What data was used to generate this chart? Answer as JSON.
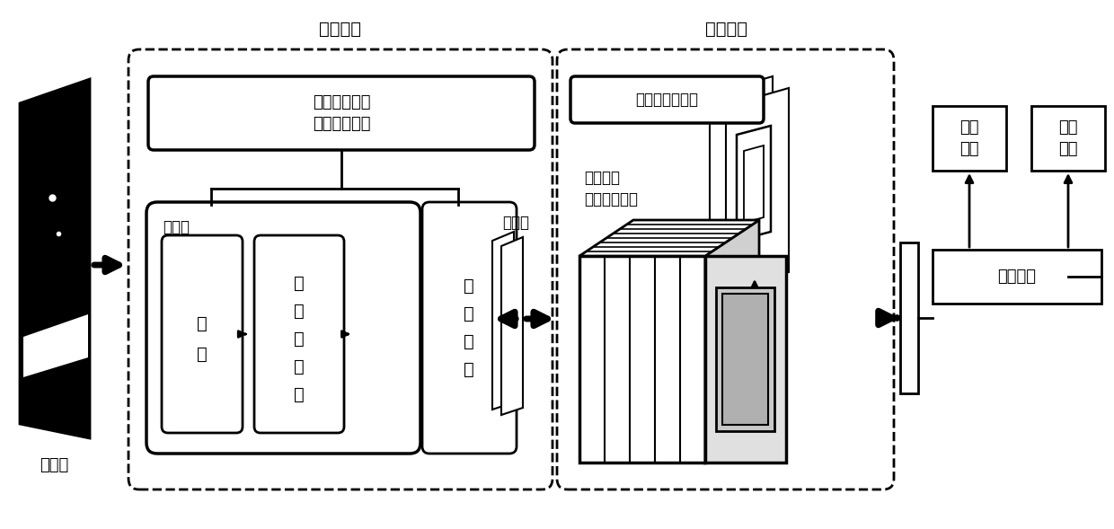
{
  "bg_color": "#ffffff",
  "label_caiyangtu": "采样图",
  "label_yijiwangluo": "一级网络",
  "label_erjiwangluo": "二级网络",
  "label_beijing": "背景残差网络\n特征提取网络",
  "label_xunhuan": "循环：",
  "label_juanji": "卷\n积",
  "label_zuida": "最\n大\n值\n池\n化",
  "label_pingjun": "平\n均\n池\n化",
  "label_tezhengtu": "特征图",
  "label_houxuankuang": "候选框推荐网络",
  "label_duochidu": "多尺度框\n与目标重叠率",
  "label_quanlianjie": "全连接层",
  "label_liefen_fj": "裂缝\n分级",
  "label_liefen_dw": "裂缝\n定位"
}
